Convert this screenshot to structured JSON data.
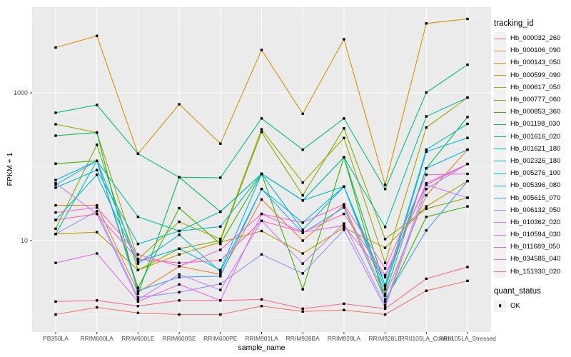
{
  "figure": {
    "y_axis_title": "FPKM + 1",
    "x_axis_title": "sample_name",
    "panel_background": "#EBEBEB",
    "gridline_color": "#FFFFFF",
    "tick_mark_color": "#333333",
    "tick_label_color": "#4D4D4D",
    "point_color": "#000000"
  },
  "legend": {
    "tracking_title": "tracking_id",
    "quant_title": "quant_status",
    "quant_ok_label": "OK"
  },
  "chart_data": {
    "type": "line",
    "title": "",
    "xlabel": "sample_name",
    "ylabel": "FPKM + 1",
    "y_scale": "log10",
    "grid": true,
    "legend_position": "right",
    "y_ticks": [
      {
        "value": 1000,
        "label": "1000"
      },
      {
        "value": 10,
        "label": "10"
      }
    ],
    "y_minor_gridlines": [
      1,
      100,
      10000
    ],
    "ylim": [
      0.6,
      14000
    ],
    "marker": "small black square (quant_status = OK)",
    "categories": [
      "PB350LA",
      "RRIM600LA",
      "RRIM600LE",
      "RRIM600SE",
      "RRIM600PE",
      "RRIM901LA",
      "RRIM928BA",
      "RRIM928LA",
      "RRIM928LE",
      "RRII105LA_Control",
      "RRII105LA_Stressed"
    ],
    "series": [
      {
        "name": "Hb_000032_260",
        "color": "#F8766D",
        "values": [
          1.0,
          1.25,
          1.05,
          1.0,
          1.0,
          1.3,
          1.1,
          1.15,
          1.0,
          2.1,
          2.85
        ]
      },
      {
        "name": "Hb_000106_090",
        "color": "#EA8331",
        "values": [
          30,
          30,
          2.0,
          4.5,
          3.5,
          36,
          10,
          30,
          1.8,
          41,
          170
        ]
      },
      {
        "name": "Hb_000143_050",
        "color": "#D89000",
        "values": [
          4100,
          5900,
          150,
          700,
          205,
          3800,
          520,
          5300,
          57,
          8700,
          10000
        ]
      },
      {
        "name": "Hb_000599_090",
        "color": "#C09B00",
        "values": [
          12.3,
          13,
          4.0,
          6.5,
          9.5,
          13.5,
          6.7,
          15,
          8.0,
          29,
          64
        ]
      },
      {
        "name": "Hb_000617_050",
        "color": "#A3A500",
        "values": [
          376,
          290,
          5.6,
          18,
          10.5,
          320,
          61,
          245,
          5.0,
          340,
          860
        ]
      },
      {
        "name": "Hb_000777_060",
        "color": "#7CAE00",
        "values": [
          14.5,
          198,
          4.0,
          7.8,
          10.0,
          295,
          41,
          330,
          10.5,
          27,
          38
        ]
      },
      {
        "name": "Hb_000853_360",
        "color": "#39B600",
        "values": [
          110,
          120,
          2.3,
          27.5,
          9.0,
          80,
          2.2,
          134,
          1.5,
          21,
          29
        ]
      },
      {
        "name": "Hb_001198_030",
        "color": "#00BB4E",
        "values": [
          263,
          290,
          1.9,
          72,
          24.6,
          80,
          35,
          134,
          2.4,
          95,
          470
        ]
      },
      {
        "name": "Hb_001616_020",
        "color": "#00BF7D",
        "values": [
          537,
          685,
          150,
          72,
          71,
          450,
          170,
          450,
          50,
          1010,
          2400
        ]
      },
      {
        "name": "Hb_001621_180",
        "color": "#00C1A3",
        "values": [
          12.3,
          120,
          21,
          13.5,
          24.6,
          80,
          35,
          134,
          15.3,
          480,
          860
        ]
      },
      {
        "name": "Hb_002326_180",
        "color": "#00BFC4",
        "values": [
          52,
          90,
          9.0,
          13.5,
          15.5,
          80,
          35,
          54,
          2.5,
          170,
          380
        ]
      },
      {
        "name": "Hb_005276_100",
        "color": "#00BAE0",
        "values": [
          19,
          78,
          4.9,
          12,
          3.8,
          50,
          17.5,
          54,
          2.2,
          160,
          245
        ]
      },
      {
        "name": "Hb_005396_080",
        "color": "#00B0F6",
        "values": [
          66,
          120,
          5.2,
          7.8,
          4.0,
          80,
          14,
          54,
          1.9,
          95,
          170
        ]
      },
      {
        "name": "Hb_005615_070",
        "color": "#35A2FF",
        "values": [
          57,
          120,
          2.1,
          3.2,
          3.3,
          50,
          12.7,
          28,
          1.6,
          13.7,
          64
        ]
      },
      {
        "name": "Hb_006132_050",
        "color": "#9590FF",
        "values": [
          12.3,
          25,
          1.7,
          2.0,
          2.6,
          6.5,
          3.6,
          14,
          1.25,
          50,
          109
        ]
      },
      {
        "name": "Hb_010362_020",
        "color": "#C77CFF",
        "values": [
          60,
          23,
          1.6,
          3.5,
          2.15,
          18.5,
          4.9,
          17,
          1.35,
          57,
          38
        ]
      },
      {
        "name": "Hb_010594_030",
        "color": "#E76BF3",
        "values": [
          5.0,
          6.7,
          1.5,
          2.55,
          1.55,
          23,
          13,
          16,
          3.2,
          60,
          109
        ]
      },
      {
        "name": "Hb_011689_050",
        "color": "#FA62DB",
        "values": [
          24,
          28,
          6.5,
          4.5,
          7.5,
          23,
          17.5,
          31,
          4.2,
          78,
          80
        ]
      },
      {
        "name": "Hb_034585_040",
        "color": "#FF62BC",
        "values": [
          19,
          23,
          5.6,
          5.0,
          5.4,
          18.5,
          13,
          23,
          3.4,
          57,
          109
        ]
      },
      {
        "name": "Hb_151930_020",
        "color": "#FF6A98",
        "values": [
          1.5,
          1.55,
          1.3,
          1.55,
          1.55,
          1.6,
          1.2,
          1.4,
          1.2,
          3.05,
          4.4
        ]
      }
    ]
  }
}
